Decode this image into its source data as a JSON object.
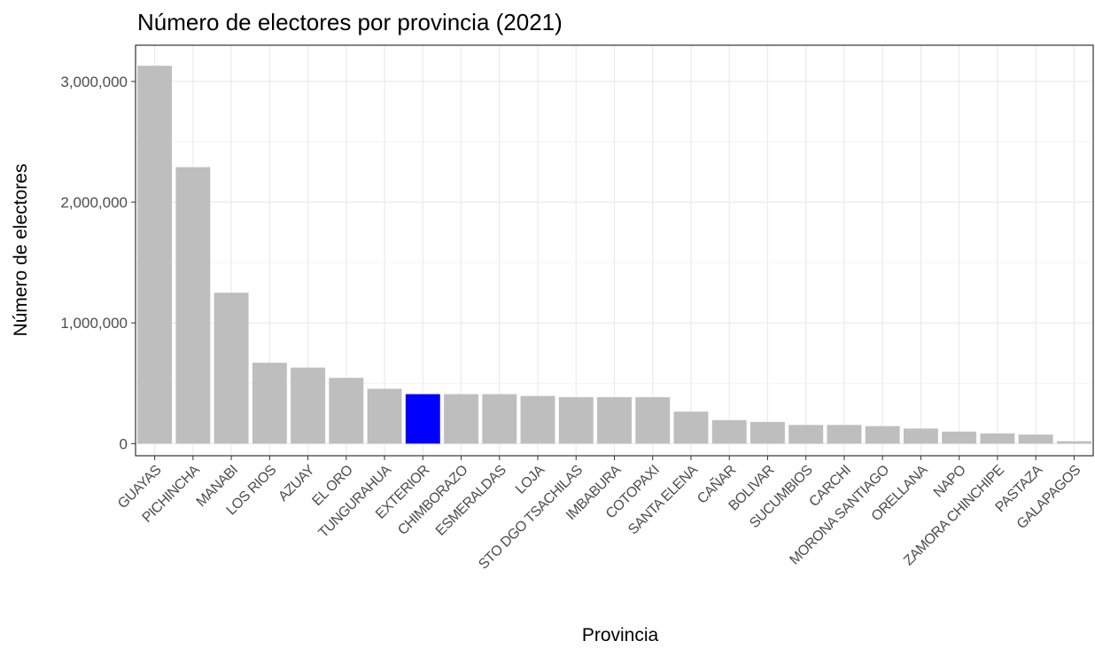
{
  "chart_data": {
    "type": "bar",
    "title": "Número de electores por provincia (2021)",
    "xlabel": "Provincia",
    "ylabel": "Número de electores",
    "categories": [
      "GUAYAS",
      "PICHINCHA",
      "MANABI",
      "LOS RIOS",
      "AZUAY",
      "EL ORO",
      "TUNGURAHUA",
      "EXTERIOR",
      "CHIMBORAZO",
      "ESMERALDAS",
      "LOJA",
      "STO DGO TSACHILAS",
      "IMBABURA",
      "COTOPAXI",
      "SANTA ELENA",
      "CAÑAR",
      "BOLIVAR",
      "SUCUMBIOS",
      "CARCHI",
      "MORONA SANTIAGO",
      "ORELLANA",
      "NAPO",
      "ZAMORA CHINCHIPE",
      "PASTAZA",
      "GALAPAGOS"
    ],
    "values": [
      3130000,
      2290000,
      1250000,
      670000,
      630000,
      545000,
      455000,
      410000,
      410000,
      410000,
      395000,
      385000,
      385000,
      385000,
      265000,
      195000,
      180000,
      155000,
      155000,
      145000,
      125000,
      100000,
      85000,
      75000,
      20000
    ],
    "highlight": "EXTERIOR",
    "bar_color": "#bebebe",
    "highlight_color": "#0000ff",
    "ylim": [
      -100000,
      3300000
    ],
    "y_ticks": [
      0,
      1000000,
      2000000,
      3000000
    ],
    "y_tick_labels": [
      "0",
      "1,000,000",
      "2,000,000",
      "3,000,000"
    ],
    "grid": true,
    "legend": "none",
    "theme": "bw"
  }
}
